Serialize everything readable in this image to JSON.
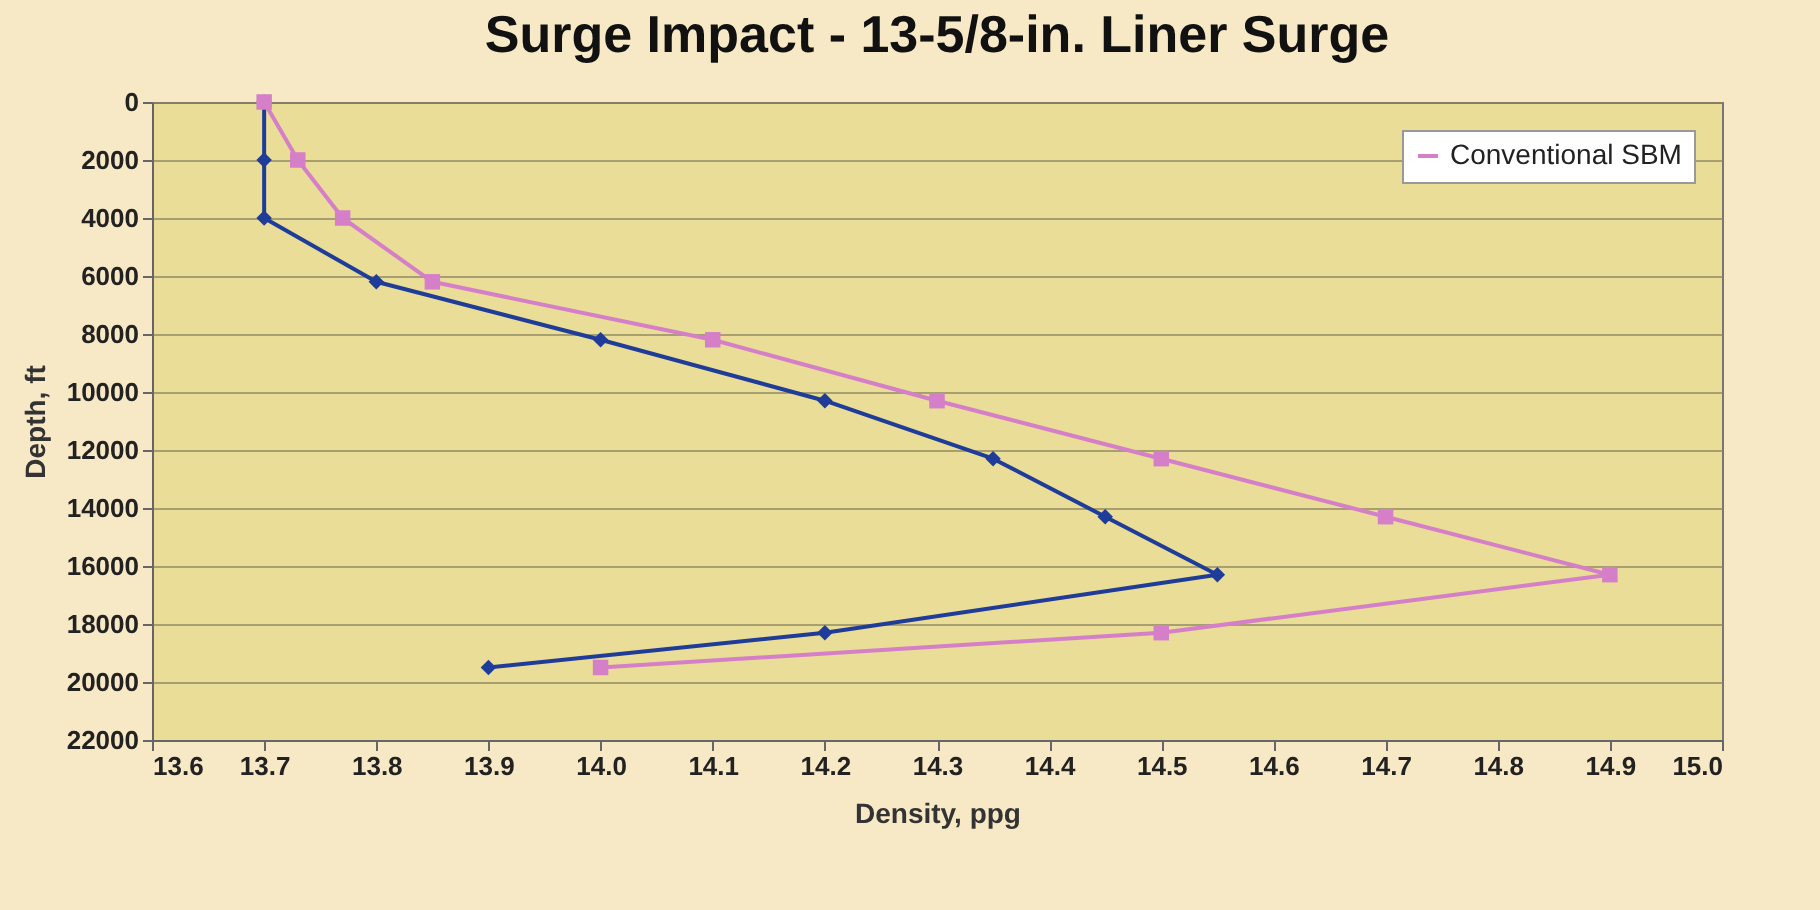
{
  "chart_data": {
    "type": "line",
    "title": "Surge Impact - 13-5/8-in. Liner Surge",
    "xlabel": "Density, ppg",
    "ylabel": "Depth, ft",
    "xlim": [
      13.6,
      15.0
    ],
    "xticks": [
      13.6,
      13.7,
      13.8,
      13.9,
      {
        "value": 14.0,
        "label": "14.0"
      },
      14.1,
      14.2,
      14.3,
      14.4,
      14.5,
      14.6,
      14.7,
      14.8,
      14.9,
      {
        "value": 15.0,
        "label": "15.0"
      }
    ],
    "ylim": [
      22000,
      0
    ],
    "yticks": [
      0,
      2000,
      4000,
      6000,
      8000,
      10000,
      12000,
      14000,
      16000,
      18000,
      20000,
      22000
    ],
    "grid": "y",
    "legend": "top right",
    "series": [
      {
        "color": "#1f3c98",
        "marker": "diamond",
        "x": [
          13.7,
          13.7,
          13.7,
          13.8,
          14.0,
          14.2,
          14.35,
          14.45,
          14.55,
          14.2,
          13.9
        ],
        "values": [
          0,
          2000,
          4000,
          6200,
          8200,
          10300,
          12300,
          14300,
          16300,
          18300,
          19500
        ]
      },
      {
        "name": "Conventional SBM",
        "color": "#d57fc8",
        "marker": "square",
        "x": [
          13.7,
          13.73,
          13.77,
          13.85,
          14.1,
          14.3,
          14.5,
          14.7,
          14.9,
          14.5,
          14.0
        ],
        "values": [
          0,
          2000,
          4000,
          6200,
          8200,
          10300,
          12300,
          14300,
          16300,
          18300,
          19500
        ]
      }
    ]
  }
}
